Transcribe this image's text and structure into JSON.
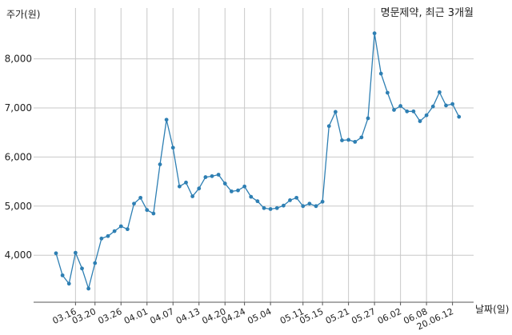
{
  "chart_data": {
    "type": "line",
    "title": "명문제약, 최근 3개월",
    "ylabel": "주가(원)",
    "xlabel": "날짜(일)",
    "ylim": [
      3100,
      8700
    ],
    "yticks": [
      4000,
      5000,
      6000,
      7000,
      8000
    ],
    "ytick_labels": [
      "4,000",
      "5,000",
      "6,000",
      "7,000",
      "8,000"
    ],
    "grid": true,
    "line_color": "#2e7fb3",
    "xtick_labels": [
      "03.16",
      "03.20",
      "03.26",
      "04.01",
      "04.07",
      "04.13",
      "04.20",
      "04.24",
      "05.04",
      "05.11",
      "05.15",
      "05.21",
      "05.27",
      "06.02",
      "06.08",
      "20.06.12"
    ],
    "xtick_index": [
      3,
      6,
      10,
      14,
      18,
      22,
      26,
      29,
      33,
      38,
      41,
      45,
      49,
      53,
      57,
      61
    ],
    "values": [
      4040,
      3590,
      3420,
      4050,
      3730,
      3320,
      3840,
      4340,
      4390,
      4490,
      4590,
      4530,
      5050,
      5170,
      4920,
      4850,
      5850,
      6760,
      6190,
      5400,
      5480,
      5200,
      5360,
      5590,
      5610,
      5640,
      5460,
      5300,
      5320,
      5400,
      5190,
      5100,
      4960,
      4940,
      4960,
      5010,
      5120,
      5170,
      5000,
      5050,
      5000,
      5090,
      6630,
      6920,
      6340,
      6350,
      6310,
      6400,
      6790,
      8520,
      7700,
      7310,
      6960,
      7040,
      6930,
      6930,
      6730,
      6850,
      7030,
      7320,
      7050,
      7080,
      6820
    ]
  }
}
